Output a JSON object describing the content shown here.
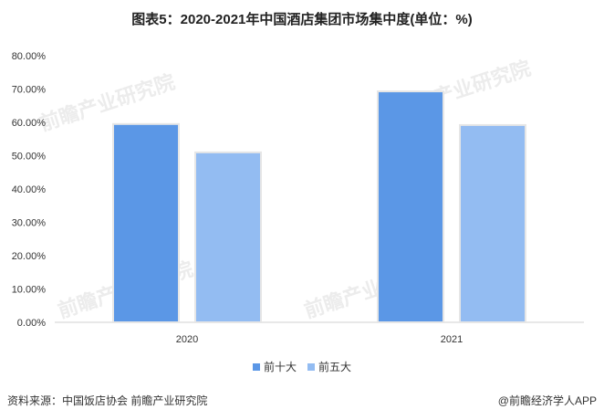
{
  "title": "图表5：2020-2021年中国酒店集团市场集中度(单位：%)",
  "chart_data": {
    "type": "bar",
    "categories": [
      "2020",
      "2021"
    ],
    "series": [
      {
        "name": "前十大",
        "values": [
          59.5,
          69.3
        ],
        "color": "#5b97e6"
      },
      {
        "name": "前五大",
        "values": [
          51.0,
          59.2
        ],
        "color": "#93bcf2"
      }
    ],
    "ylim": [
      0,
      80
    ],
    "yticks": [
      "0.00%",
      "10.00%",
      "20.00%",
      "30.00%",
      "40.00%",
      "50.00%",
      "60.00%",
      "70.00%",
      "80.00%"
    ],
    "grid": false,
    "legend_position": "bottom"
  },
  "legend": [
    {
      "label": "前十大",
      "color": "#5b97e6"
    },
    {
      "label": "前五大",
      "color": "#93bcf2"
    }
  ],
  "footer": {
    "source": "资料来源：中国饭店协会 前瞻产业研究院",
    "credit": "@前瞻经济学人APP"
  },
  "watermark": "前瞻产业研究院"
}
